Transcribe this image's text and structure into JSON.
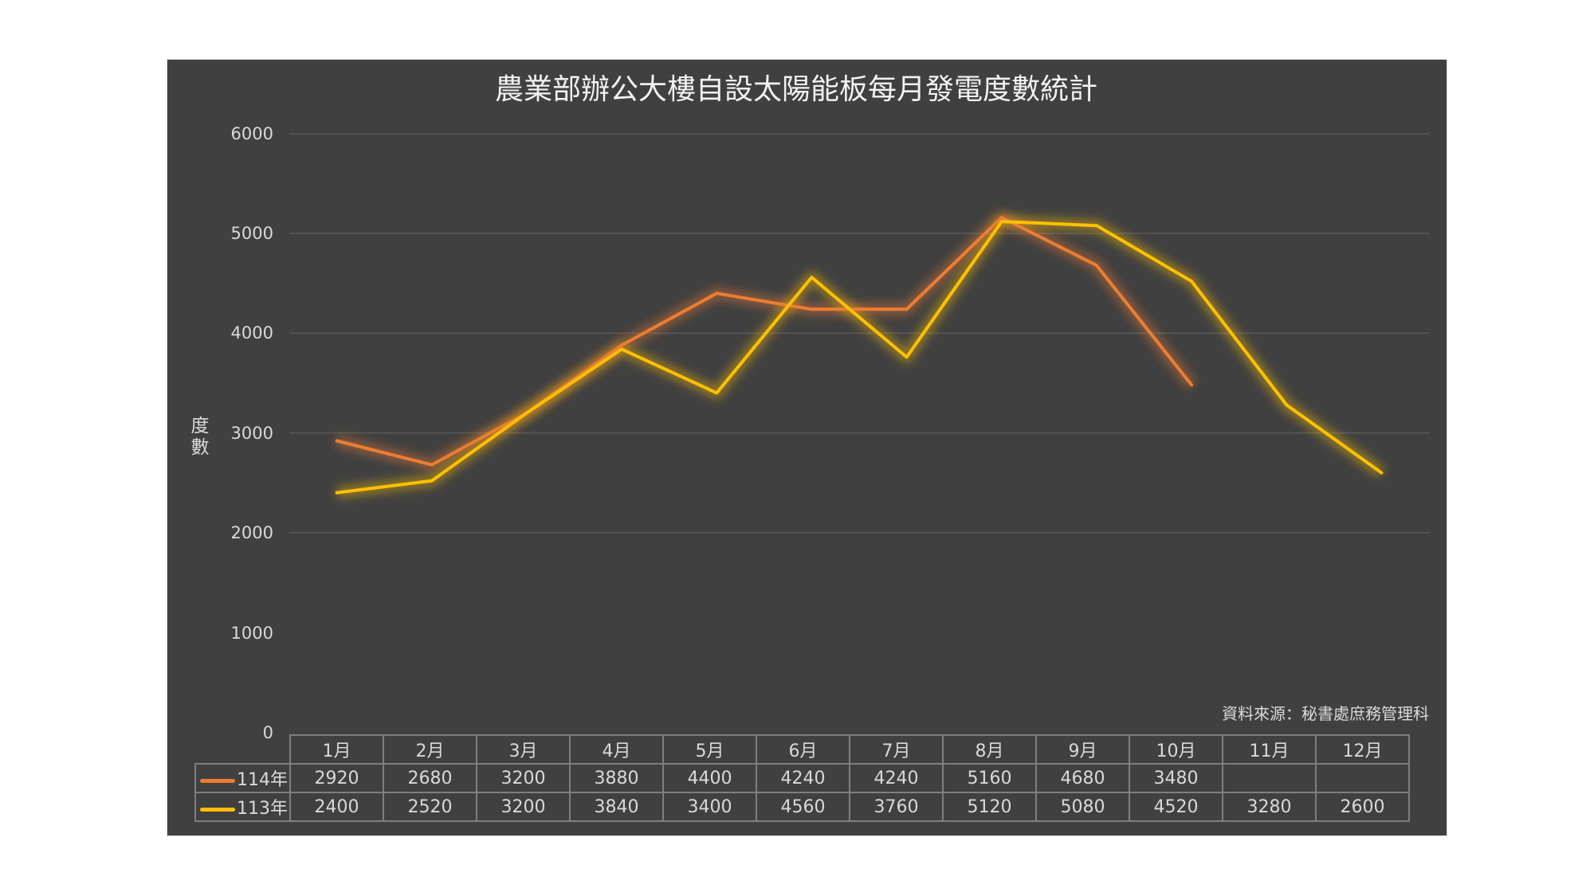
{
  "chart": {
    "title": "農業部辦公大樓自設太陽能板每月發電度數統計",
    "ylabel": "度數",
    "yticks": [
      "6000",
      "5000",
      "4000",
      "3000",
      "2000",
      "1000",
      "0"
    ],
    "source": "資料來源：秘書處庶務管理科",
    "months": [
      "1月",
      "2月",
      "3月",
      "4月",
      "5月",
      "6月",
      "7月",
      "8月",
      "9月",
      "10月",
      "11月",
      "12月"
    ],
    "series": [
      {
        "name": "114年",
        "color": "#ED7D31",
        "values": [
          "2920",
          "2680",
          "3200",
          "3880",
          "4400",
          "4240",
          "4240",
          "5160",
          "4680",
          "3480",
          "",
          ""
        ]
      },
      {
        "name": "113年",
        "color": "#FFC000",
        "values": [
          "2400",
          "2520",
          "3200",
          "3840",
          "3400",
          "4560",
          "3760",
          "5120",
          "5080",
          "4520",
          "3280",
          "2600"
        ]
      }
    ]
  },
  "chart_data": {
    "type": "line",
    "title": "農業部辦公大樓自設太陽能板每月發電度數統計",
    "xlabel": "",
    "ylabel": "度數",
    "ylim": [
      0,
      6000
    ],
    "yticks": [
      0,
      1000,
      2000,
      3000,
      4000,
      5000,
      6000
    ],
    "grid": true,
    "legend_position": "data table (bottom)",
    "categories": [
      "1月",
      "2月",
      "3月",
      "4月",
      "5月",
      "6月",
      "7月",
      "8月",
      "9月",
      "10月",
      "11月",
      "12月"
    ],
    "series": [
      {
        "name": "114年",
        "color": "#ED7D31",
        "values": [
          2920,
          2680,
          3200,
          3880,
          4400,
          4240,
          4240,
          5160,
          4680,
          3480,
          null,
          null
        ]
      },
      {
        "name": "113年",
        "color": "#FFC000",
        "values": [
          2400,
          2520,
          3200,
          3840,
          3400,
          4560,
          3760,
          5120,
          5080,
          4520,
          3280,
          2600
        ]
      }
    ],
    "annotations": [
      "資料來源：秘書處庶務管理科"
    ]
  }
}
